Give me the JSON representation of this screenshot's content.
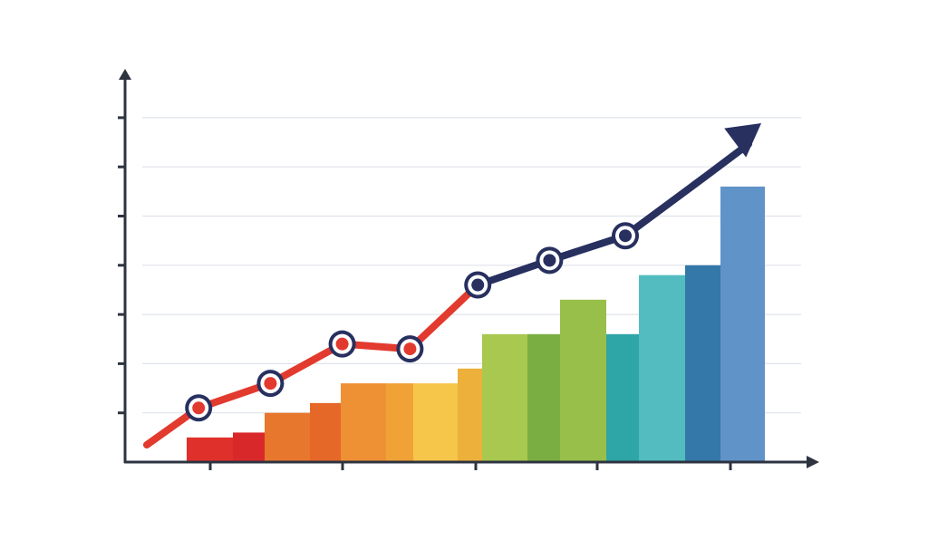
{
  "chart_data": {
    "type": "bar",
    "title": "",
    "xlabel": "",
    "ylabel": "",
    "ylim": [
      0,
      9
    ],
    "grid": true,
    "legend": "none",
    "bars": [
      {
        "value": 0.5,
        "color": "#e0302b"
      },
      {
        "value": 0.6,
        "color": "#d9282a"
      },
      {
        "value": 1.0,
        "color": "#e8772e"
      },
      {
        "value": 1.2,
        "color": "#e56828"
      },
      {
        "value": 1.6,
        "color": "#ee9135"
      },
      {
        "value": 1.6,
        "color": "#f0a236"
      },
      {
        "value": 1.6,
        "color": "#f6c64a"
      },
      {
        "value": 1.9,
        "color": "#ecb03b"
      },
      {
        "value": 2.6,
        "color": "#a8c850"
      },
      {
        "value": 2.6,
        "color": "#7aae42"
      },
      {
        "value": 3.3,
        "color": "#98bf4a"
      },
      {
        "value": 2.6,
        "color": "#2ea5a6"
      },
      {
        "value": 3.8,
        "color": "#52bcc0"
      },
      {
        "value": 4.0,
        "color": "#3378a8"
      },
      {
        "value": 5.6,
        "color": "#6093c8"
      }
    ],
    "series": [
      {
        "type": "line",
        "x": [
          0.0,
          1.3,
          3.1,
          4.9,
          6.6,
          8.3,
          10.1,
          12.0,
          14.0,
          15.3
        ],
        "values": [
          0.3,
          1.1,
          1.6,
          2.4,
          2.3,
          3.6,
          4.1,
          4.6,
          5.8,
          6.3
        ],
        "markers": [
          1,
          2,
          3,
          4,
          5,
          6,
          7
        ],
        "color_start": "#e23a2e",
        "color_end": "#27305f",
        "color_switch_index": 5,
        "arrow_end": true
      }
    ],
    "ticks_y": [
      1,
      2,
      3,
      4,
      5,
      6,
      7
    ],
    "ticks_x_count": 5
  }
}
